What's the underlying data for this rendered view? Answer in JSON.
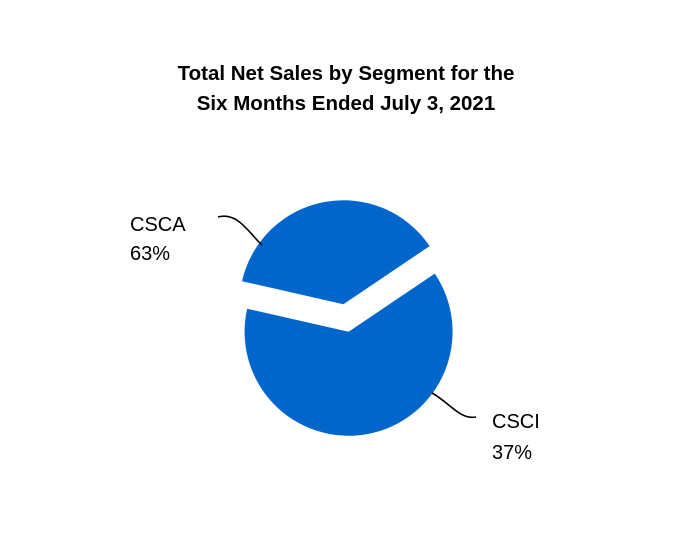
{
  "chart_data": {
    "type": "pie",
    "title": "Total Net Sales by Segment for the",
    "subtitle": "Six Months Ended July 3, 2021",
    "slices": [
      {
        "name": "CSCA",
        "label": "63%",
        "value": 63,
        "color": "#0066cc"
      },
      {
        "name": "CSCI",
        "label": "37%",
        "value": 37,
        "color": "#0066cc"
      }
    ],
    "legend": "none",
    "exploded": true
  }
}
